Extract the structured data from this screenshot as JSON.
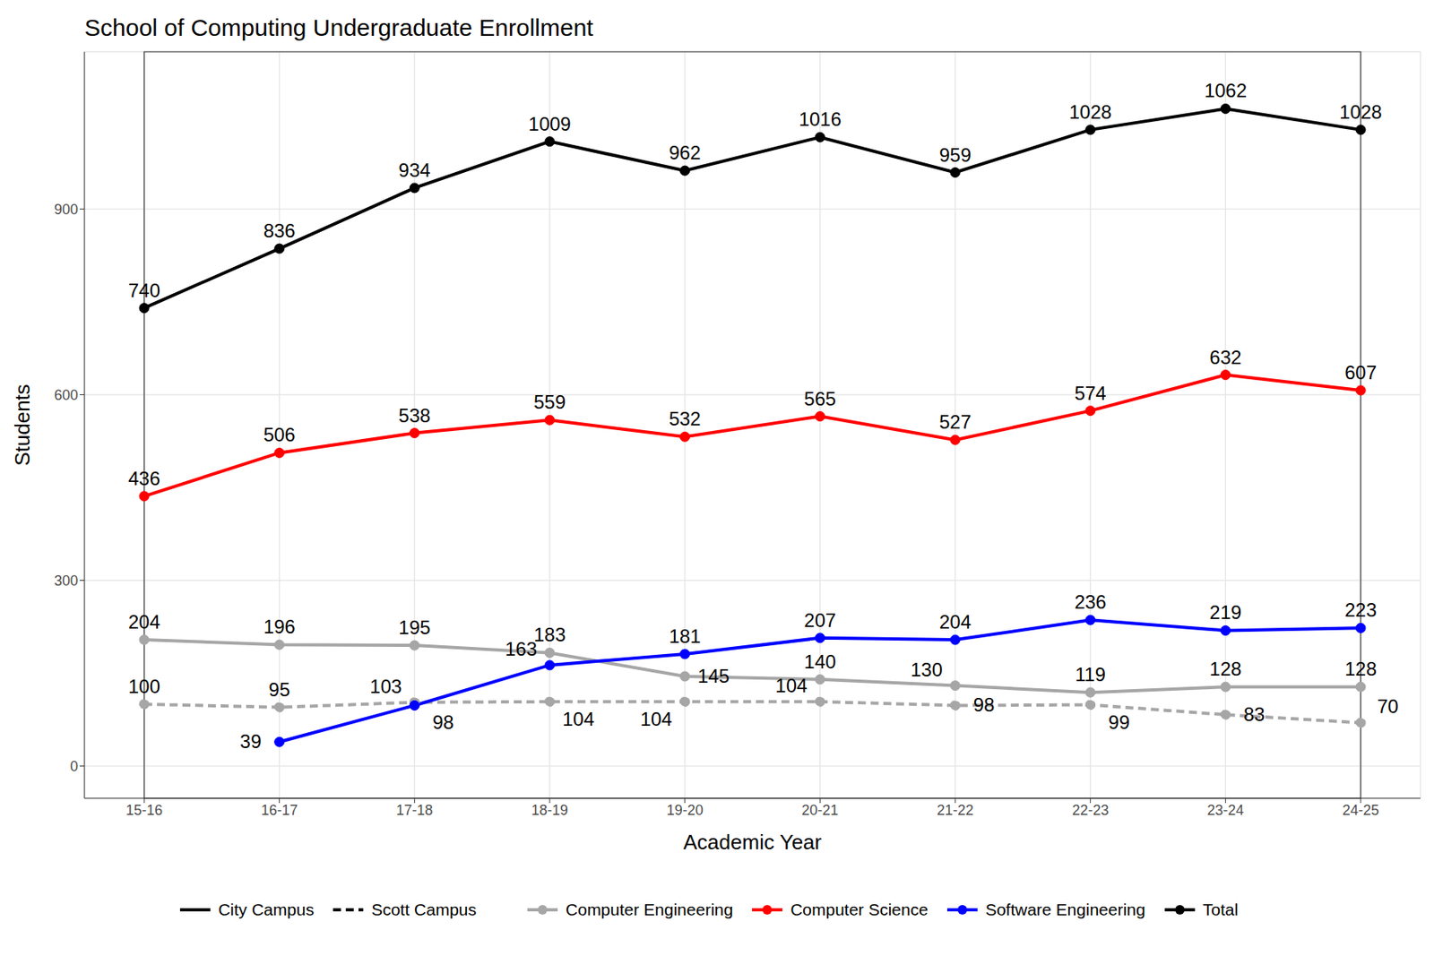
{
  "chart_data": {
    "type": "line",
    "title": "School of Computing Undergraduate Enrollment",
    "x_label": "Academic Year",
    "y_label": "Students",
    "categories": [
      "15-16",
      "16-17",
      "17-18",
      "18-19",
      "19-20",
      "20-21",
      "21-22",
      "22-23",
      "23-24",
      "24-25"
    ],
    "series": [
      {
        "name": "Computer Engineering",
        "color": "#a6a6a6",
        "line_style": "solid",
        "marker": "circle",
        "values": [
          204,
          196,
          195,
          183,
          145,
          140,
          130,
          119,
          128,
          128
        ]
      },
      {
        "name": "Computer Engineering",
        "color": "#a6a6a6",
        "line_style": "dashed",
        "marker": "circle",
        "values": [
          100,
          95,
          103,
          104,
          104,
          104,
          98,
          99,
          83,
          70
        ]
      },
      {
        "name": "Computer Science",
        "color": "#ff0000",
        "line_style": "solid",
        "marker": "circle",
        "values": [
          436,
          506,
          538,
          559,
          532,
          565,
          527,
          574,
          632,
          607
        ]
      },
      {
        "name": "Software Engineering",
        "color": "#0000ff",
        "line_style": "solid",
        "marker": "circle",
        "values": [
          null,
          39,
          98,
          163,
          181,
          207,
          204,
          236,
          219,
          223
        ]
      },
      {
        "name": "Total",
        "color": "#000000",
        "line_style": "solid",
        "marker": "circle",
        "values": [
          740,
          836,
          934,
          1009,
          962,
          1016,
          959,
          1028,
          1062,
          1028
        ]
      }
    ],
    "campus_legend": [
      {
        "name": "City Campus",
        "line_style": "solid"
      },
      {
        "name": "Scott Campus",
        "line_style": "dashed"
      }
    ],
    "ylim": [
      -52,
      1154
    ],
    "yticks": [
      0,
      300,
      600,
      900
    ],
    "grid": true,
    "data_labels": true,
    "legend": "bottom"
  }
}
